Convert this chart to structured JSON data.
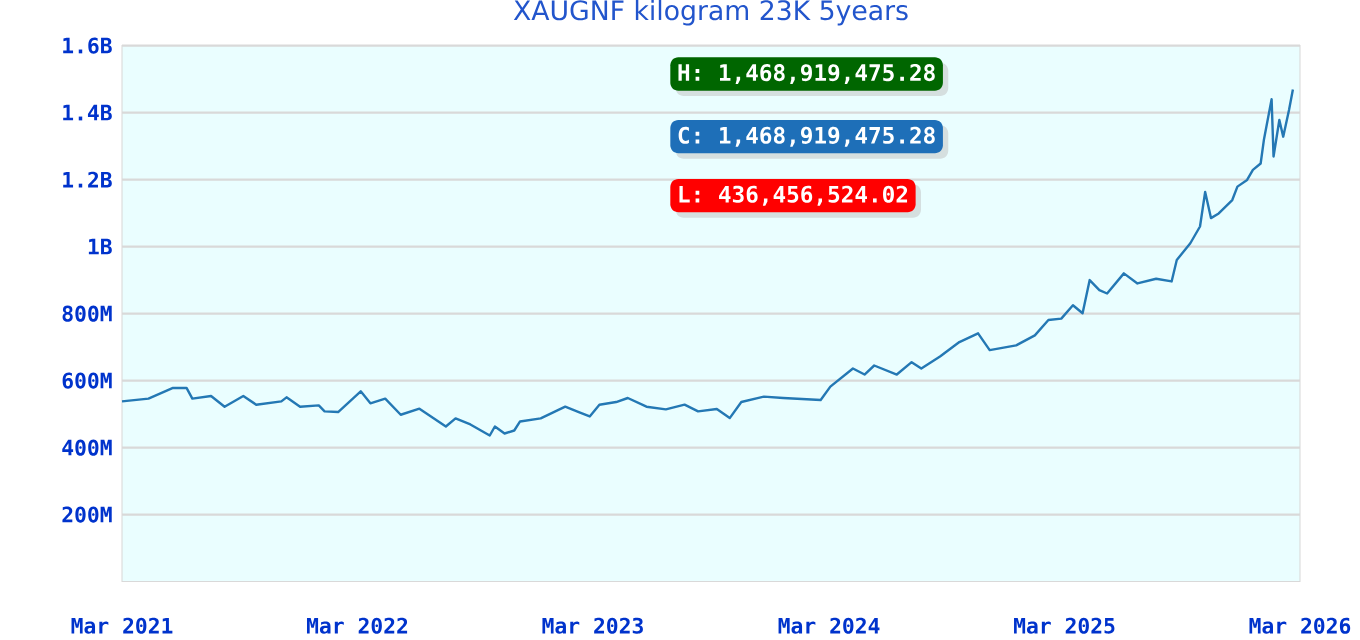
{
  "chart_data": {
    "type": "line",
    "title": "XAUGNF kilogram 23K 5years",
    "x": [
      "2021-03-01",
      "2021-04-11",
      "2021-05-19",
      "2021-06-09",
      "2021-06-18",
      "2021-07-17",
      "2021-08-07",
      "2021-09-05",
      "2021-09-25",
      "2021-11-03",
      "2021-11-11",
      "2021-12-02",
      "2021-12-31",
      "2022-01-09",
      "2022-01-30",
      "2022-03-06",
      "2022-03-21",
      "2022-04-13",
      "2022-05-07",
      "2022-06-05",
      "2022-07-16",
      "2022-07-31",
      "2022-08-23",
      "2022-09-22",
      "2022-09-30",
      "2022-10-15",
      "2022-10-30",
      "2022-11-08",
      "2022-12-10",
      "2023-01-17",
      "2023-02-07",
      "2023-02-24",
      "2023-03-11",
      "2023-04-06",
      "2023-04-24",
      "2023-05-23",
      "2023-06-22",
      "2023-07-21",
      "2023-08-11",
      "2023-09-09",
      "2023-09-29",
      "2023-10-17",
      "2023-11-21",
      "2023-12-21",
      "2024-02-17",
      "2024-03-03",
      "2024-04-07",
      "2024-04-25",
      "2024-05-10",
      "2024-06-14",
      "2024-07-07",
      "2024-07-22",
      "2024-08-20",
      "2024-09-19",
      "2024-10-18",
      "2024-11-05",
      "2024-12-16",
      "2025-01-14",
      "2025-02-04",
      "2025-02-24",
      "2025-03-14",
      "2025-03-29",
      "2025-04-09",
      "2025-04-24",
      "2025-05-06",
      "2025-06-01",
      "2025-06-22",
      "2025-07-21",
      "2025-08-14",
      "2025-08-22",
      "2025-09-12",
      "2025-09-27",
      "2025-10-05",
      "2025-10-14",
      "2025-10-26",
      "2025-11-16",
      "2025-11-24",
      "2025-12-09",
      "2025-12-18",
      "2025-12-30",
      "2026-01-04",
      "2026-01-16",
      "2026-01-19",
      "2026-01-28",
      "2026-02-03",
      "2026-02-12",
      "2026-02-18"
    ],
    "series": [
      {
        "color": "#2478b4",
        "values": [
          538000000,
          546000000,
          578000000,
          578000000,
          546000000,
          554000000,
          522000000,
          554000000,
          528000000,
          538000000,
          550000000,
          522000000,
          526000000,
          508000000,
          506000000,
          568000000,
          532000000,
          546000000,
          498000000,
          516000000,
          463000000,
          487000000,
          469000000,
          436000000,
          463000000,
          442000000,
          451000000,
          478000000,
          487000000,
          522000000,
          506000000,
          493000000,
          528000000,
          536000000,
          548000000,
          522000000,
          514000000,
          528000000,
          508000000,
          515000000,
          488000000,
          536000000,
          552000000,
          548000000,
          542000000,
          582000000,
          636000000,
          618000000,
          645000000,
          618000000,
          655000000,
          636000000,
          672000000,
          715000000,
          741000000,
          691000000,
          705000000,
          735000000,
          781000000,
          785000000,
          825000000,
          801000000,
          900000000,
          870000000,
          860000000,
          920000000,
          890000000,
          904000000,
          896000000,
          960000000,
          1010000000,
          1060000000,
          1163000000,
          1085000000,
          1099000000,
          1139000000,
          1179000000,
          1199000000,
          1229000000,
          1248000000,
          1318000000,
          1440000000,
          1269000000,
          1378000000,
          1328000000,
          1408000000,
          1469000000
        ]
      }
    ],
    "xlim": [
      "2021-03-01",
      "2026-03-01"
    ],
    "xticks": [
      {
        "value": "2021-03-01",
        "label": "Mar 2021"
      },
      {
        "value": "2022-03-01",
        "label": "Mar 2022"
      },
      {
        "value": "2023-03-01",
        "label": "Mar 2023"
      },
      {
        "value": "2024-03-01",
        "label": "Mar 2024"
      },
      {
        "value": "2025-03-01",
        "label": "Mar 2025"
      },
      {
        "value": "2026-03-01",
        "label": "Mar 2026"
      }
    ],
    "ylim": [
      0,
      1600000000
    ],
    "yticks": [
      {
        "value": 200000000,
        "label": "200M"
      },
      {
        "value": 400000000,
        "label": "400M"
      },
      {
        "value": 600000000,
        "label": "600M"
      },
      {
        "value": 800000000,
        "label": "800M"
      },
      {
        "value": 1000000000,
        "label": "1B"
      },
      {
        "value": 1200000000,
        "label": "1.2B"
      },
      {
        "value": 1400000000,
        "label": "1.4B"
      },
      {
        "value": 1600000000,
        "label": "1.6B"
      }
    ],
    "grid": "y",
    "annotations": [
      "H: 1,468,919,475.28",
      "C: 1,468,919,475.28",
      "L: 436,456,524.02"
    ]
  }
}
